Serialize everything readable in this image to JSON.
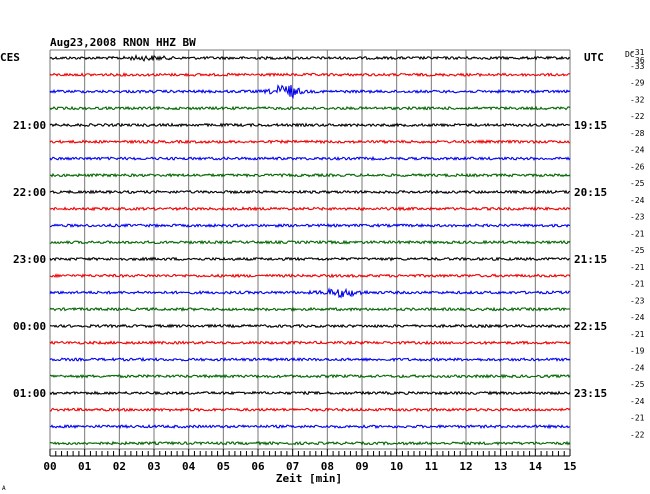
{
  "chart_data": {
    "type": "line",
    "title": "Aug23,2008   RNON HHZ BW",
    "left_axis_label": "CES",
    "right_axis_label": "UTC",
    "dc_label": "DC",
    "dc_first_suffix": "36",
    "xlabel": "Zeit [min]",
    "x_ticks": [
      "00",
      "01",
      "02",
      "03",
      "04",
      "05",
      "06",
      "07",
      "08",
      "09",
      "10",
      "11",
      "12",
      "13",
      "14",
      "15"
    ],
    "xlim": [
      0,
      15
    ],
    "trace_colors": [
      "#000000",
      "#ee0000",
      "#0000ee",
      "#006600"
    ],
    "left_times": [
      {
        "trace": 4,
        "label": "21:00"
      },
      {
        "trace": 8,
        "label": "22:00"
      },
      {
        "trace": 12,
        "label": "23:00"
      },
      {
        "trace": 16,
        "label": "00:00"
      },
      {
        "trace": 20,
        "label": "01:00"
      }
    ],
    "right_times": [
      {
        "trace": 4,
        "label": "19:15"
      },
      {
        "trace": 8,
        "label": "20:15"
      },
      {
        "trace": 12,
        "label": "21:15"
      },
      {
        "trace": 16,
        "label": "22:15"
      },
      {
        "trace": 20,
        "label": "23:15"
      }
    ],
    "dc_offsets": [
      "-31",
      "-33",
      "-29",
      "-32",
      "-22",
      "-28",
      "-24",
      "-26",
      "-25",
      "-24",
      "-23",
      "-21",
      "-25",
      "-21",
      "-21",
      "-23",
      "-24",
      "-21",
      "-19",
      "-24",
      "-25",
      "-24",
      "-21",
      "-22"
    ],
    "events": [
      {
        "trace": 2,
        "minute": 6.8,
        "amplitude": "strong"
      },
      {
        "trace": 14,
        "minute": 8.4,
        "amplitude": "moderate"
      },
      {
        "trace": 0,
        "minute": 2.8,
        "amplitude": "weak"
      }
    ],
    "corner_mark": "A"
  }
}
